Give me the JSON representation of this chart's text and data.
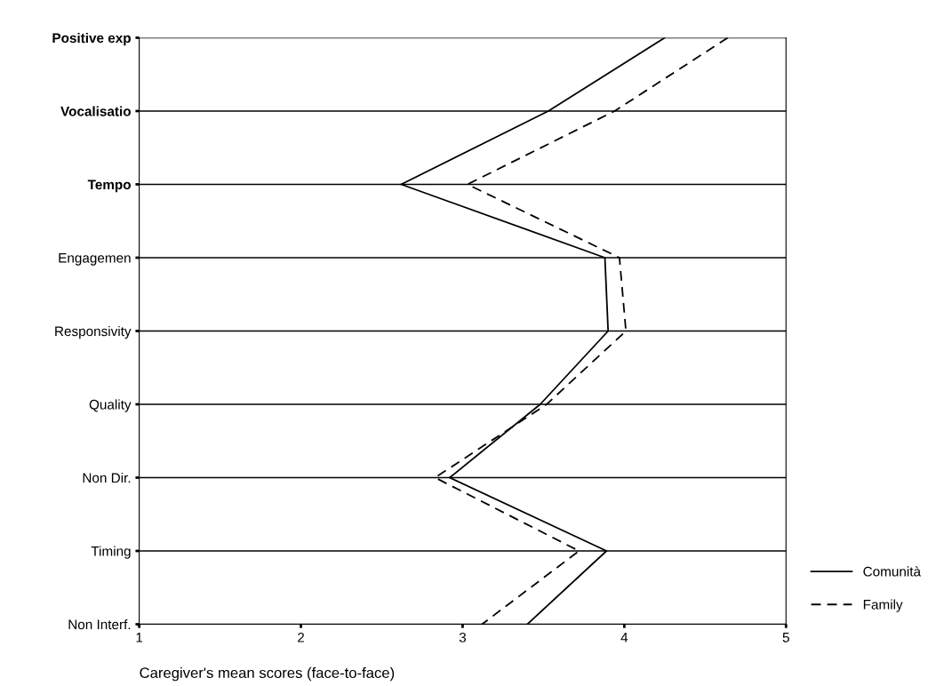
{
  "chart_data": {
    "type": "line",
    "orientation": "horizontal",
    "xlabel": "Caregiver's mean scores (face-to-face)",
    "categories": [
      "Positive exp",
      "Vocalisatio",
      "Tempo",
      "Engagemen",
      "Responsivity",
      "Quality",
      "Non Dir.",
      "Timing",
      "Non Interf."
    ],
    "series": [
      {
        "name": "Comunità",
        "color": "#000000",
        "line_style": "solid",
        "values": [
          4.25,
          3.53,
          2.62,
          3.88,
          3.9,
          3.48,
          2.92,
          3.89,
          3.4
        ]
      },
      {
        "name": "Family",
        "color": "#000000",
        "line_style": "dashed",
        "values": [
          4.64,
          3.94,
          3.03,
          3.97,
          4.01,
          3.52,
          2.83,
          3.72,
          3.12
        ]
      }
    ],
    "xlim": [
      1,
      5
    ],
    "xticks": [
      1,
      2,
      3,
      4,
      5
    ],
    "grid": "y",
    "legend": "bottom right",
    "marker": "none"
  }
}
